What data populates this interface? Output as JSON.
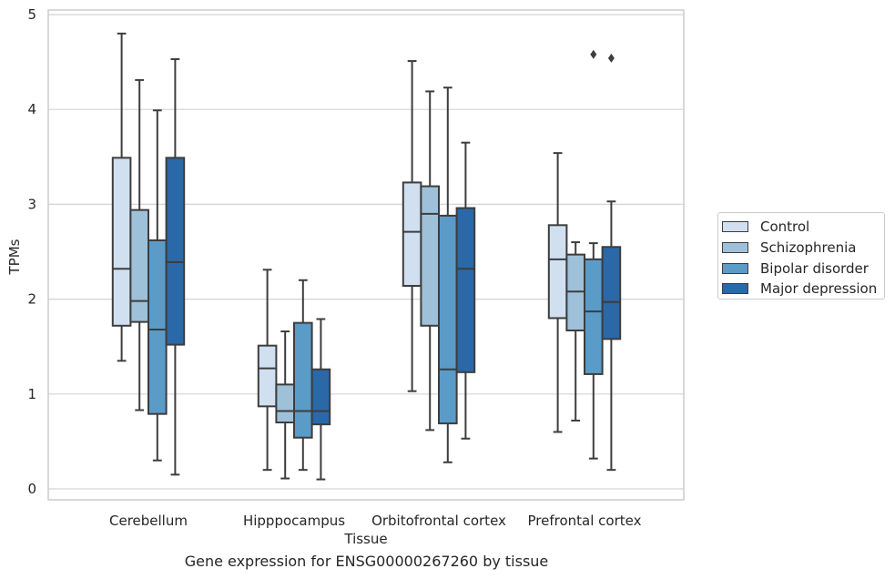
{
  "chart_data": {
    "type": "boxplot",
    "xlabel": "Tissue",
    "ylabel": "TPMs",
    "ylim": [
      -0.12,
      5.05
    ],
    "yticks": [
      "0",
      "1",
      "2",
      "3",
      "4",
      "5"
    ],
    "grid": "horizontal",
    "legend_position": "right",
    "categories": [
      "Cerebellum",
      "Hipppocampus",
      "Orbitofrontal cortex",
      "Prefrontal cortex"
    ],
    "series": [
      {
        "name": "Control",
        "color": "#d0e0f0",
        "boxes": [
          {
            "whisker_low": 1.35,
            "q1": 1.72,
            "median": 2.32,
            "q3": 3.49,
            "whisker_high": 4.8,
            "outliers": []
          },
          {
            "whisker_low": 0.2,
            "q1": 0.87,
            "median": 1.27,
            "q3": 1.51,
            "whisker_high": 2.31,
            "outliers": []
          },
          {
            "whisker_low": 1.03,
            "q1": 2.14,
            "median": 2.71,
            "q3": 3.23,
            "whisker_high": 4.51,
            "outliers": []
          },
          {
            "whisker_low": 0.6,
            "q1": 1.8,
            "median": 2.42,
            "q3": 2.78,
            "whisker_high": 3.54,
            "outliers": []
          }
        ]
      },
      {
        "name": "Schizophrenia",
        "color": "#9ec1d9",
        "boxes": [
          {
            "whisker_low": 0.83,
            "q1": 1.76,
            "median": 1.98,
            "q3": 2.94,
            "whisker_high": 4.31,
            "outliers": []
          },
          {
            "whisker_low": 0.11,
            "q1": 0.7,
            "median": 0.82,
            "q3": 1.1,
            "whisker_high": 1.66,
            "outliers": []
          },
          {
            "whisker_low": 0.62,
            "q1": 1.72,
            "median": 2.9,
            "q3": 3.19,
            "whisker_high": 4.19,
            "outliers": []
          },
          {
            "whisker_low": 0.72,
            "q1": 1.67,
            "median": 2.08,
            "q3": 2.47,
            "whisker_high": 2.6,
            "outliers": []
          }
        ]
      },
      {
        "name": "Bipolar disorder",
        "color": "#5b9bc8",
        "boxes": [
          {
            "whisker_low": 0.3,
            "q1": 0.79,
            "median": 1.68,
            "q3": 2.62,
            "whisker_high": 3.99,
            "outliers": []
          },
          {
            "whisker_low": 0.2,
            "q1": 0.54,
            "median": 0.82,
            "q3": 1.75,
            "whisker_high": 2.2,
            "outliers": []
          },
          {
            "whisker_low": 0.28,
            "q1": 0.69,
            "median": 1.26,
            "q3": 2.88,
            "whisker_high": 4.23,
            "outliers": []
          },
          {
            "whisker_low": 0.32,
            "q1": 1.21,
            "median": 1.87,
            "q3": 2.42,
            "whisker_high": 2.59,
            "outliers": [
              4.58
            ]
          }
        ]
      },
      {
        "name": "Major depression",
        "color": "#2a68a8",
        "boxes": [
          {
            "whisker_low": 0.15,
            "q1": 1.52,
            "median": 2.39,
            "q3": 3.49,
            "whisker_high": 4.53,
            "outliers": []
          },
          {
            "whisker_low": 0.1,
            "q1": 0.68,
            "median": 0.82,
            "q3": 1.26,
            "whisker_high": 1.79,
            "outliers": []
          },
          {
            "whisker_low": 0.53,
            "q1": 1.23,
            "median": 2.32,
            "q3": 2.96,
            "whisker_high": 3.65,
            "outliers": []
          },
          {
            "whisker_low": 0.2,
            "q1": 1.58,
            "median": 1.97,
            "q3": 2.55,
            "whisker_high": 3.03,
            "outliers": [
              4.54
            ]
          }
        ]
      }
    ],
    "caption": "Gene expression for ENSG00000267260 by tissue"
  }
}
